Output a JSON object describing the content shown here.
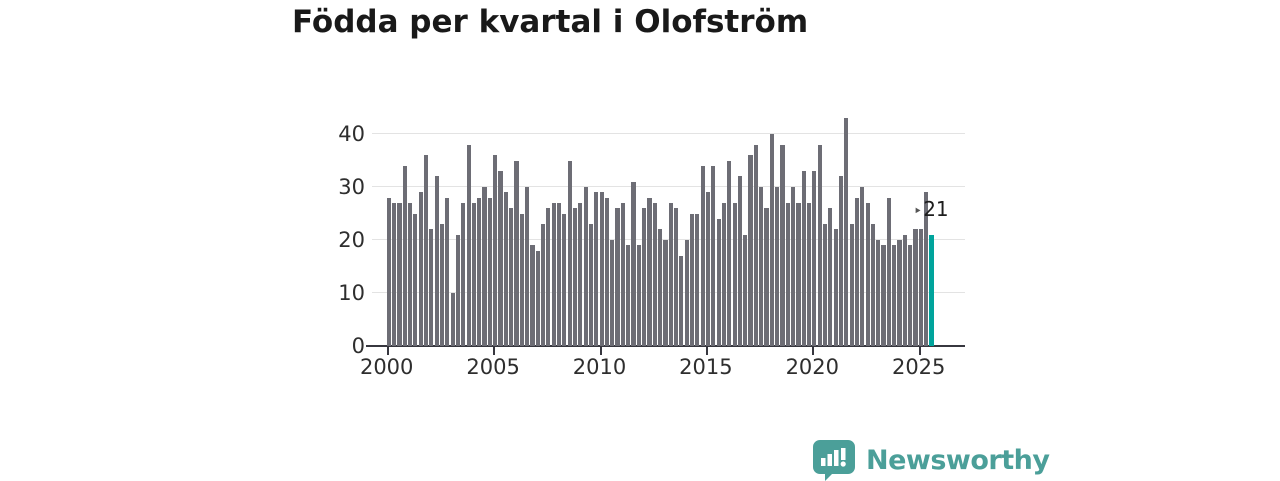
{
  "title": "Födda per kvartal i Olofström",
  "colors": {
    "bar": "#6d6d75",
    "accent": "#00a49c",
    "grid": "#e3e3e3",
    "axis": "#37373f",
    "tick_text": "#2e2e2e",
    "title_text": "#191919",
    "logo_teal": "#4b9f99"
  },
  "chart_data": {
    "type": "bar",
    "title": "Födda per kvartal i Olofström",
    "xlabel": "",
    "ylabel": "",
    "x_tick_labels": [
      "2000",
      "2005",
      "2010",
      "2015",
      "2020",
      "2025"
    ],
    "y_tick_values": [
      0,
      10,
      20,
      30,
      40
    ],
    "ylim": [
      0,
      45
    ],
    "grid": "horizontal",
    "frequency": "quarterly",
    "start_year": 2000,
    "start_quarter": 1,
    "values": [
      28,
      27,
      27,
      34,
      27,
      25,
      29,
      36,
      22,
      32,
      23,
      28,
      10,
      21,
      27,
      38,
      27,
      28,
      30,
      28,
      36,
      33,
      29,
      26,
      35,
      25,
      30,
      19,
      18,
      23,
      26,
      27,
      27,
      25,
      35,
      26,
      27,
      30,
      23,
      29,
      29,
      28,
      20,
      26,
      27,
      19,
      31,
      19,
      26,
      28,
      27,
      22,
      20,
      27,
      26,
      17,
      20,
      25,
      25,
      34,
      29,
      34,
      24,
      27,
      35,
      27,
      32,
      21,
      36,
      38,
      30,
      26,
      40,
      30,
      38,
      27,
      30,
      27,
      33,
      27,
      33,
      38,
      23,
      26,
      22,
      32,
      43,
      23,
      28,
      30,
      27,
      23,
      20,
      19,
      28,
      19,
      20,
      21,
      19,
      22,
      22,
      29,
      21
    ],
    "highlight_index": 102,
    "highlight_value": 21,
    "annotation": {
      "marker": "‣",
      "text": "21"
    }
  },
  "footer": {
    "brand": "Newsworthy",
    "logo_icon": "bar-chart-speech-bubble"
  }
}
